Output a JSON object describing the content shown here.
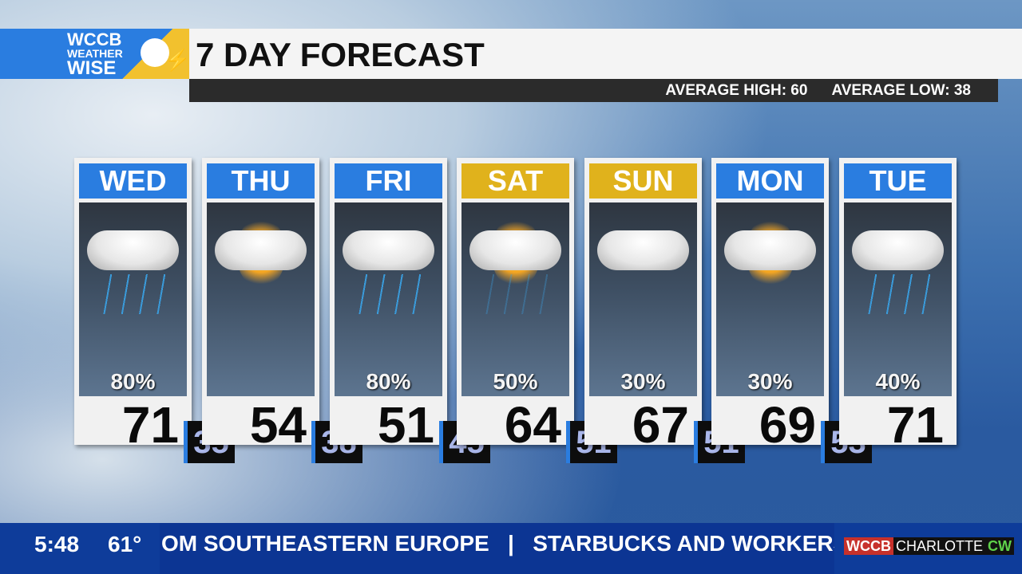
{
  "logo": {
    "line1": "WCCB",
    "line2": "WEATHER",
    "line3": "WISE"
  },
  "header": {
    "title": "7 DAY FORECAST",
    "average_high": "AVERAGE HIGH: 60",
    "average_low": "AVERAGE LOW: 38"
  },
  "days": [
    {
      "day": "WED",
      "icon": "rain-cloud-icon",
      "precip": "80%",
      "high": "71",
      "low": "35",
      "header_color": "#2a7de0"
    },
    {
      "day": "THU",
      "icon": "partly-sunny-icon",
      "precip": "",
      "high": "54",
      "low": "38",
      "header_color": "#2a7de0"
    },
    {
      "day": "FRI",
      "icon": "rain-cloud-icon",
      "precip": "80%",
      "high": "51",
      "low": "45",
      "header_color": "#2a7de0"
    },
    {
      "day": "SAT",
      "icon": "partly-sunny-showers-icon",
      "precip": "50%",
      "high": "64",
      "low": "51",
      "header_color": "#e0b21c"
    },
    {
      "day": "SUN",
      "icon": "cloudy-icon",
      "precip": "30%",
      "high": "67",
      "low": "51",
      "header_color": "#e0b21c"
    },
    {
      "day": "MON",
      "icon": "partly-sunny-icon",
      "precip": "30%",
      "high": "69",
      "low": "53",
      "header_color": "#2a7de0"
    },
    {
      "day": "TUE",
      "icon": "rain-cloud-icon",
      "precip": "40%",
      "high": "71",
      "low": "",
      "header_color": "#2a7de0"
    }
  ],
  "ticker": {
    "time": "5:48",
    "temp": "61°",
    "crawl": "OM SOUTHEASTERN EUROPE   |   STARBUCKS AND WORKERS U",
    "station_wccb": "WCCB",
    "station_city": "CHARLOTTE",
    "station_net": "CW"
  }
}
